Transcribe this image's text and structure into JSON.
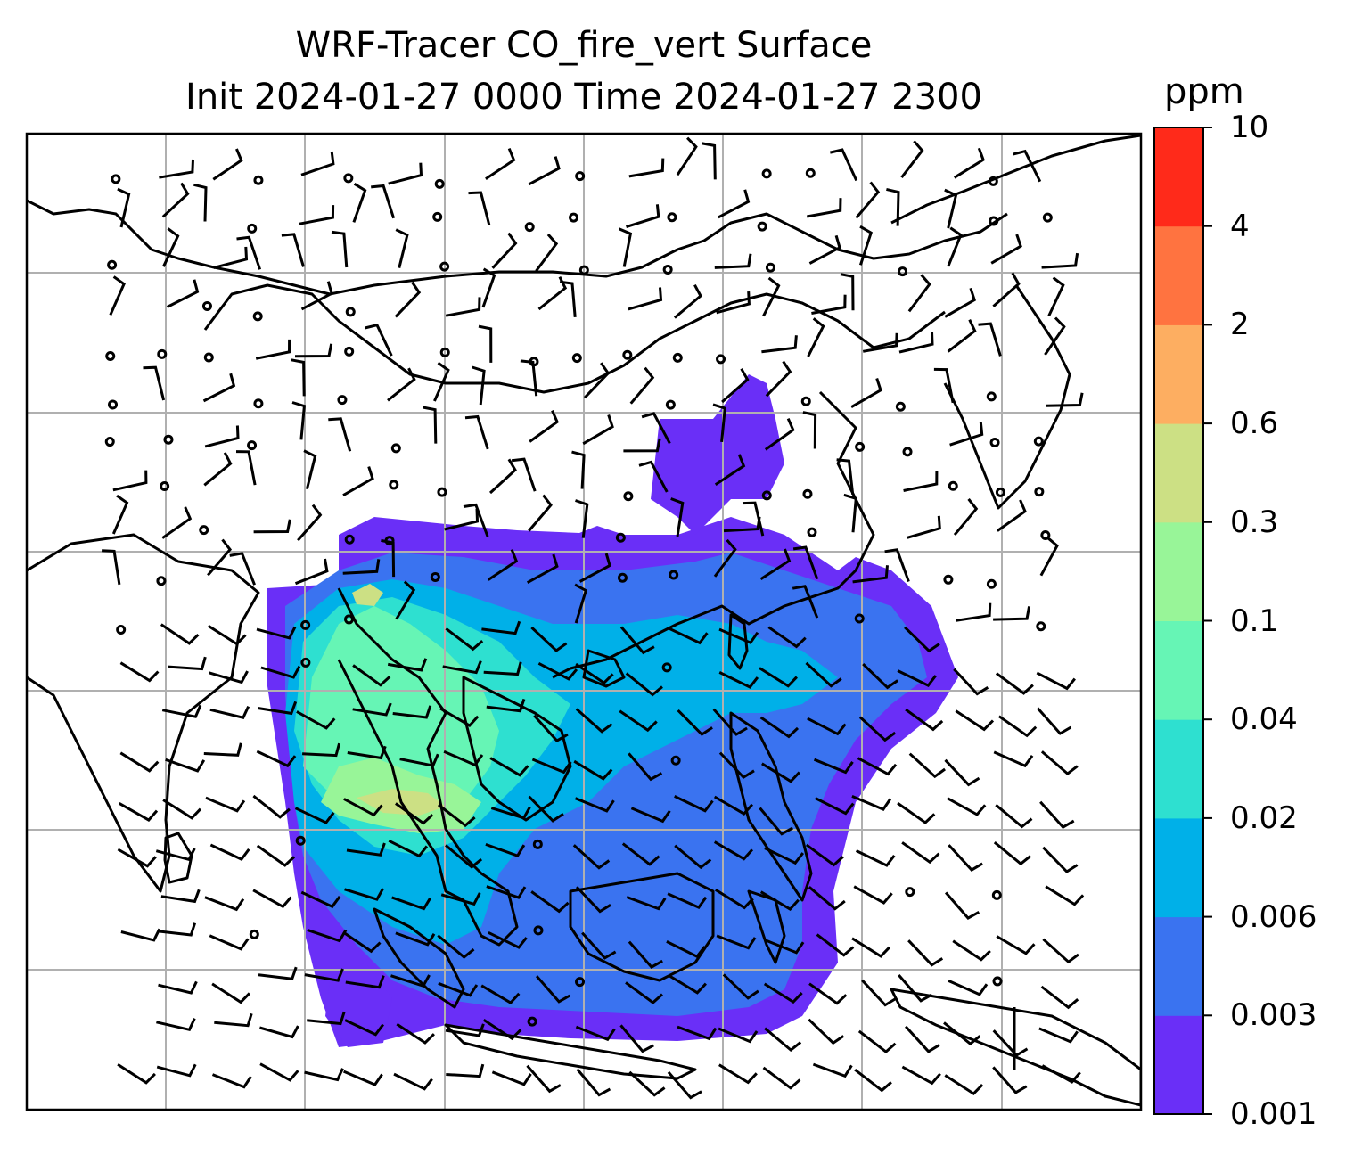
{
  "title": {
    "line1": "WRF-Tracer CO_fire_vert Surface",
    "line2": "Init 2024-01-27 0000 Time 2024-01-27 2300"
  },
  "colorbar": {
    "unit": "ppm",
    "ticks": [
      "0.001",
      "0.003",
      "0.006",
      "0.02",
      "0.04",
      "0.1",
      "0.3",
      "0.6",
      "2",
      "4",
      "10"
    ],
    "colors": [
      "#6a2ff7",
      "#3a73f0",
      "#00b0e8",
      "#2ee0d0",
      "#66f5b5",
      "#98f598",
      "#cce084",
      "#fdae61",
      "#ff7340",
      "#ff2a1a"
    ]
  },
  "map": {
    "gridlines": true,
    "coastline_color": "#000000",
    "grid_color": "#b0b0b0"
  }
}
